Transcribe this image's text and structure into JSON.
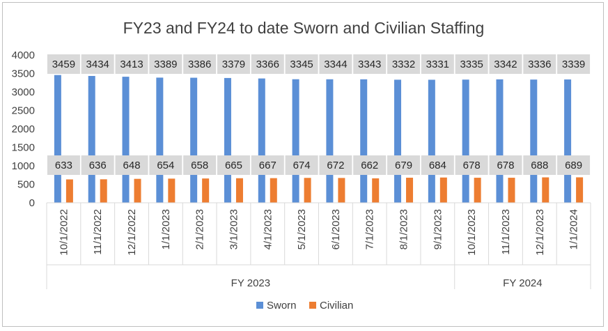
{
  "chart_data": {
    "type": "bar",
    "title": "FY23 and FY24 to date Sworn and Civilian Staffing",
    "categories": [
      "10/1/2022",
      "11/1/2022",
      "12/1/2022",
      "1/1/2023",
      "2/1/2023",
      "3/1/2023",
      "4/1/2023",
      "5/1/2023",
      "6/1/2023",
      "7/1/2023",
      "8/1/2023",
      "9/1/2023",
      "10/1/2023",
      "11/1/2023",
      "12/1/2023",
      "1/1/2024"
    ],
    "groups": [
      {
        "label": "FY 2023",
        "count": 12
      },
      {
        "label": "FY 2024",
        "count": 4
      }
    ],
    "series": [
      {
        "name": "Sworn",
        "color": "#5b8fd6",
        "values": [
          3459,
          3434,
          3413,
          3389,
          3386,
          3379,
          3366,
          3345,
          3344,
          3343,
          3332,
          3331,
          3335,
          3342,
          3336,
          3339
        ]
      },
      {
        "name": "Civilian",
        "color": "#ed7d31",
        "values": [
          633,
          636,
          648,
          654,
          658,
          665,
          667,
          674,
          672,
          662,
          679,
          684,
          678,
          678,
          688,
          689
        ]
      }
    ],
    "yticks": [
      "0",
      "500",
      "1000",
      "1500",
      "2000",
      "2500",
      "3000",
      "3500",
      "4000"
    ],
    "ylim": [
      0,
      4000
    ],
    "grid": false,
    "legend": "bottom"
  }
}
